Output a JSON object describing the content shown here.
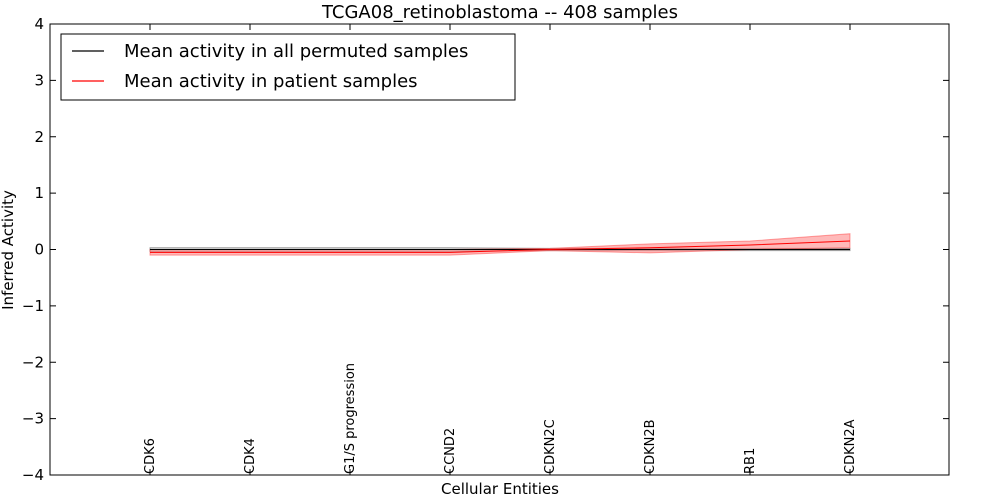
{
  "chart_data": {
    "type": "line",
    "title": "TCGA08_retinoblastoma -- 408 samples",
    "xlabel": "Cellular Entities",
    "ylabel": "Inferred Activity",
    "ylim": [
      -4,
      4
    ],
    "yticks": [
      4,
      3,
      2,
      1,
      0,
      -1,
      -2,
      -3,
      -4
    ],
    "ytick_labels": [
      "4",
      "3",
      "2",
      "1",
      "0",
      "−1",
      "−2",
      "−3",
      "−4"
    ],
    "categories": [
      "CDK6",
      "CDK4",
      "G1/S progression",
      "CCND2",
      "CDKN2C",
      "CDKN2B",
      "RB1",
      "CDKN2A"
    ],
    "legend_position": "top-left",
    "series": [
      {
        "name": "Mean activity in all permuted samples",
        "color": "#000000",
        "values": [
          0,
          0,
          0,
          0,
          0,
          0,
          0,
          0
        ],
        "band_lower": [
          -0.03,
          -0.03,
          -0.03,
          -0.03,
          -0.02,
          -0.02,
          -0.02,
          -0.02
        ],
        "band_upper": [
          0.03,
          0.03,
          0.03,
          0.03,
          0.02,
          0.02,
          0.02,
          0.02
        ]
      },
      {
        "name": "Mean activity in patient samples",
        "color": "#ff0000",
        "fill_color": "#ff8080",
        "values": [
          -0.05,
          -0.05,
          -0.05,
          -0.05,
          0.0,
          0.03,
          0.08,
          0.15
        ],
        "band_lower": [
          -0.1,
          -0.1,
          -0.1,
          -0.1,
          -0.02,
          -0.06,
          0.0,
          0.03
        ],
        "band_upper": [
          0.0,
          0.0,
          0.0,
          0.0,
          0.02,
          0.1,
          0.15,
          0.28
        ]
      }
    ]
  }
}
